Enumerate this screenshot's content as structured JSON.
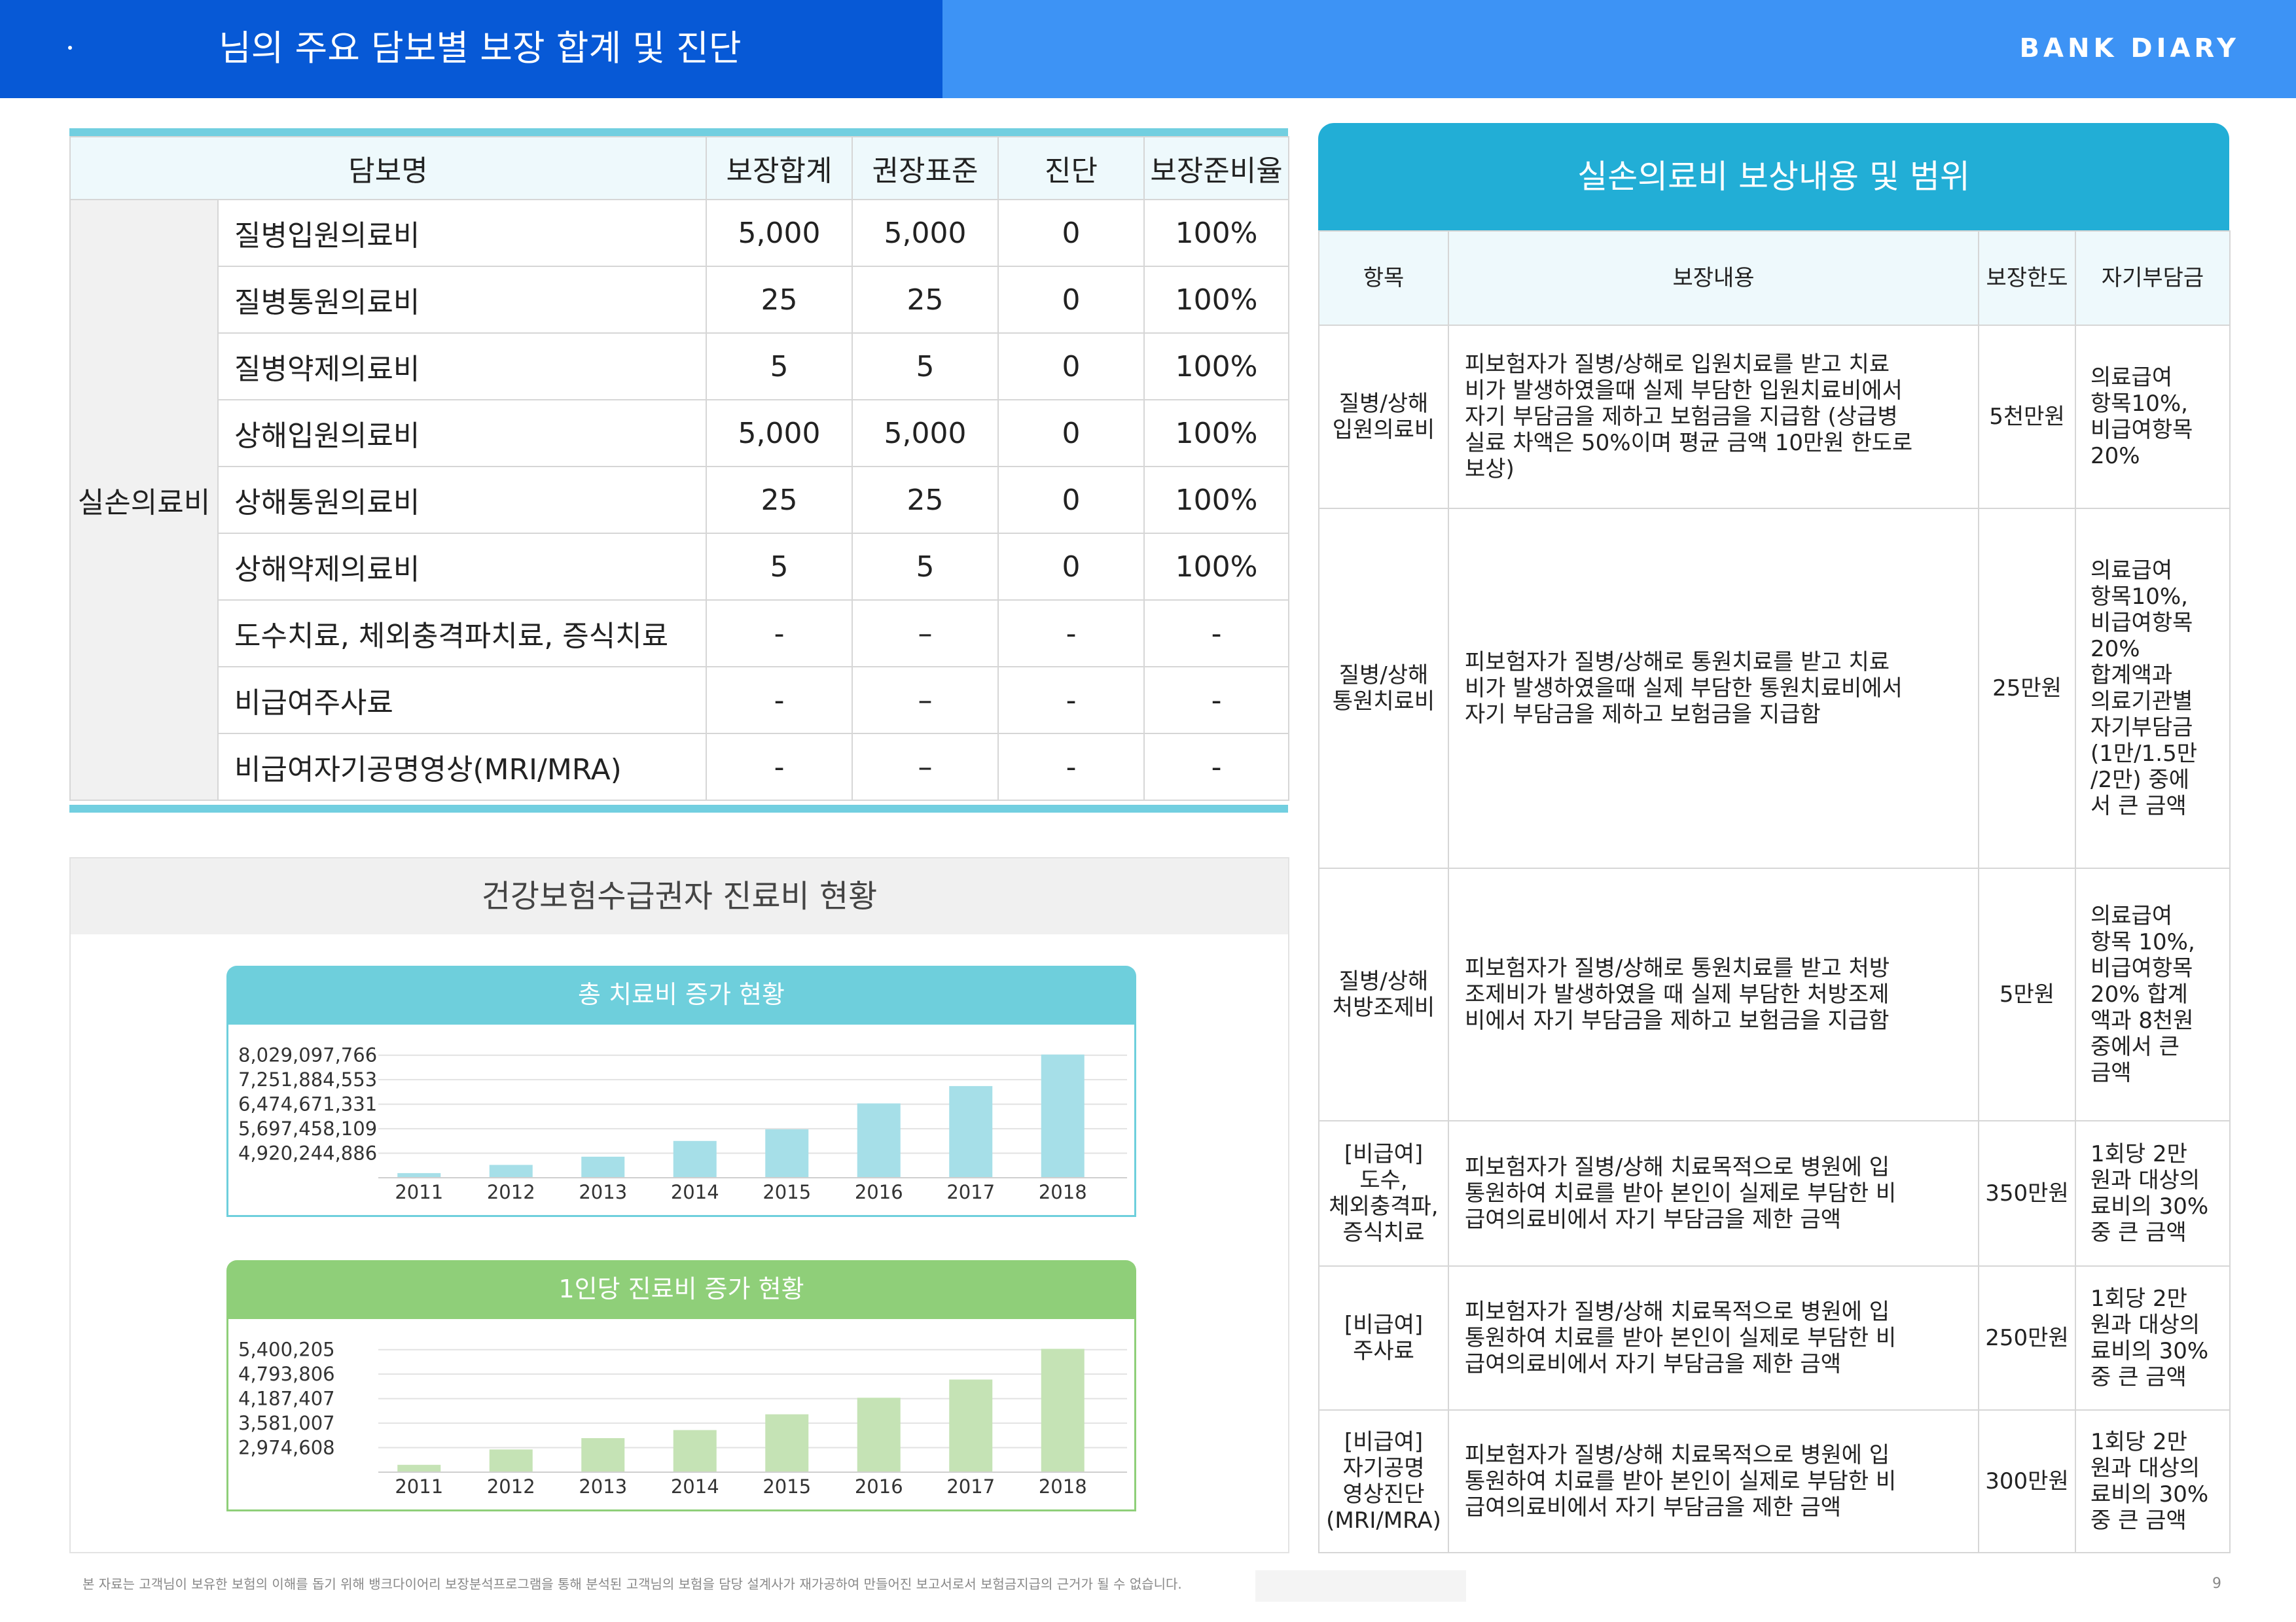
{
  "header": {
    "title": "님의 주요 담보별 보장 합계 및 진단",
    "brand": "BANK DIARY"
  },
  "coverage_table": {
    "headers": [
      "담보명",
      "보장합계",
      "권장표준",
      "진단",
      "보장준비율"
    ],
    "category": "실손의료비",
    "rows": [
      {
        "name": "질병입원의료비",
        "total": "5,000",
        "standard": "5,000",
        "diag": "0",
        "ratio": "100%"
      },
      {
        "name": "질병통원의료비",
        "total": "25",
        "standard": "25",
        "diag": "0",
        "ratio": "100%"
      },
      {
        "name": "질병약제의료비",
        "total": "5",
        "standard": "5",
        "diag": "0",
        "ratio": "100%"
      },
      {
        "name": "상해입원의료비",
        "total": "5,000",
        "standard": "5,000",
        "diag": "0",
        "ratio": "100%"
      },
      {
        "name": "상해통원의료비",
        "total": "25",
        "standard": "25",
        "diag": "0",
        "ratio": "100%"
      },
      {
        "name": "상해약제의료비",
        "total": "5",
        "standard": "5",
        "diag": "0",
        "ratio": "100%"
      },
      {
        "name": "도수치료, 체외충격파치료, 증식치료",
        "total": "-",
        "standard": "–",
        "diag": "-",
        "ratio": "-"
      },
      {
        "name": "비급여주사료",
        "total": "-",
        "standard": "–",
        "diag": "-",
        "ratio": "-"
      },
      {
        "name": "비급여자기공명영상(MRI/MRA)",
        "total": "-",
        "standard": "–",
        "diag": "-",
        "ratio": "-"
      }
    ]
  },
  "charts_panel": {
    "title": "건강보험수급권자 진료비 현황"
  },
  "chart_data": [
    {
      "type": "bar",
      "title": "총 치료비 증가 현황",
      "color": "#a6dfe8",
      "header_color": "#6ecfdc",
      "categories": [
        "2011",
        "2012",
        "2013",
        "2014",
        "2015",
        "2016",
        "2017",
        "2018"
      ],
      "values": [
        4290000000,
        4550000000,
        4810000000,
        5310000000,
        5680000000,
        6500000000,
        7050000000,
        8050000000
      ],
      "yticks": [
        "8,029,097,766",
        "7,251,884,553",
        "6,474,671,331",
        "5,697,458,109",
        "4,920,244,886"
      ],
      "ytick_values": [
        8029097766,
        7251884553,
        6474671331,
        5697458109,
        4920244886
      ],
      "ylim": [
        4143031664,
        8417704377
      ]
    },
    {
      "type": "bar",
      "title": "1인당 진료비 증가 현황",
      "color": "#c5e3b5",
      "header_color": "#8fcf79",
      "categories": [
        "2011",
        "2012",
        "2013",
        "2014",
        "2015",
        "2016",
        "2017",
        "2018"
      ],
      "values": [
        2550000,
        2930000,
        3210000,
        3410000,
        3800000,
        4210000,
        4660000,
        5420000
      ],
      "yticks": [
        "5,400,205",
        "4,793,806",
        "4,187,407",
        "3,581,007",
        "2,974,608"
      ],
      "ytick_values": [
        5400205,
        4793806,
        4187407,
        3581007,
        2974608
      ],
      "ylim": [
        2368209,
        5703405
      ]
    }
  ],
  "reimbursement_table": {
    "title": "실손의료비 보상내용 및 범위",
    "headers": [
      "항목",
      "보장내용",
      "보장한도",
      "자기부담금"
    ],
    "rows": [
      {
        "item": [
          "질병/상해",
          "입원의료비"
        ],
        "desc": [
          "피보험자가 질병/상해로 입원치료를 받고 치료",
          "비가 발생하였을때 실제 부담한 입원치료비에서",
          "자기 부담금을 제하고 보험금을 지급함 (상급병",
          "실료 차액은 50%이며 평균 금액 10만원 한도로",
          "보상)"
        ],
        "limit": "5천만원",
        "self": [
          "의료급여",
          "항목10%,",
          "비급여항목",
          "20%"
        ]
      },
      {
        "item": [
          "질병/상해",
          "통원치료비"
        ],
        "desc": [
          "피보험자가 질병/상해로 통원치료를 받고 치료",
          "비가 발생하였을때 실제 부담한 통원치료비에서",
          "자기 부담금을 제하고 보험금을 지급함"
        ],
        "limit": "25만원",
        "self": [
          "의료급여",
          "항목10%,",
          "비급여항목",
          "20%",
          "합계액과",
          "의료기관별",
          "자기부담금",
          "(1만/1.5만",
          "/2만) 중에",
          "서 큰 금액"
        ]
      },
      {
        "item": [
          "질병/상해",
          "처방조제비"
        ],
        "desc": [
          "피보험자가 질병/상해로 통원치료를 받고 처방",
          "조제비가 발생하였을 때 실제 부담한 처방조제",
          "비에서 자기 부담금을 제하고 보험금을 지급함"
        ],
        "limit": "5만원",
        "self": [
          "의료급여",
          "항목 10%,",
          "비급여항목",
          "20% 합계",
          "액과 8천원",
          "중에서 큰",
          "금액"
        ]
      },
      {
        "item": [
          "[비급여]",
          "도수,",
          "체외충격파,",
          "증식치료"
        ],
        "desc": [
          "피보험자가 질병/상해 치료목적으로 병원에 입",
          "통원하여 치료를 받아 본인이 실제로 부담한 비",
          "급여의료비에서 자기 부담금을 제한 금액"
        ],
        "limit": "350만원",
        "self": [
          "1회당 2만",
          "원과 대상의",
          "료비의 30%",
          "중 큰 금액"
        ]
      },
      {
        "item": [
          "[비급여]",
          "주사료"
        ],
        "desc": [
          "피보험자가 질병/상해 치료목적으로 병원에 입",
          "통원하여 치료를 받아 본인이 실제로 부담한 비",
          "급여의료비에서 자기 부담금을 제한 금액"
        ],
        "limit": "250만원",
        "self": [
          "1회당 2만",
          "원과 대상의",
          "료비의 30%",
          "중 큰 금액"
        ]
      },
      {
        "item": [
          "[비급여]",
          "자기공명",
          "영상진단",
          "(MRI/MRA)"
        ],
        "desc": [
          "피보험자가 질병/상해 치료목적으로 병원에 입",
          "통원하여 치료를 받아 본인이 실제로 부담한 비",
          "급여의료비에서 자기 부담금을 제한 금액"
        ],
        "limit": "300만원",
        "self": [
          "1회당 2만",
          "원과 대상의",
          "료비의 30%",
          "중 큰 금액"
        ]
      }
    ]
  },
  "footer": {
    "disclaimer": "본 자료는 고객님이 보유한 보험의 이해를 돕기 위해 뱅크다이어리 보장분석프로그램을 통해 분석된 고객님의 보험을 담당 설계사가 재가공하여 만들어진 보고서로서 보험금지급의 근거가 될 수 없습니다.",
    "page": "9"
  }
}
